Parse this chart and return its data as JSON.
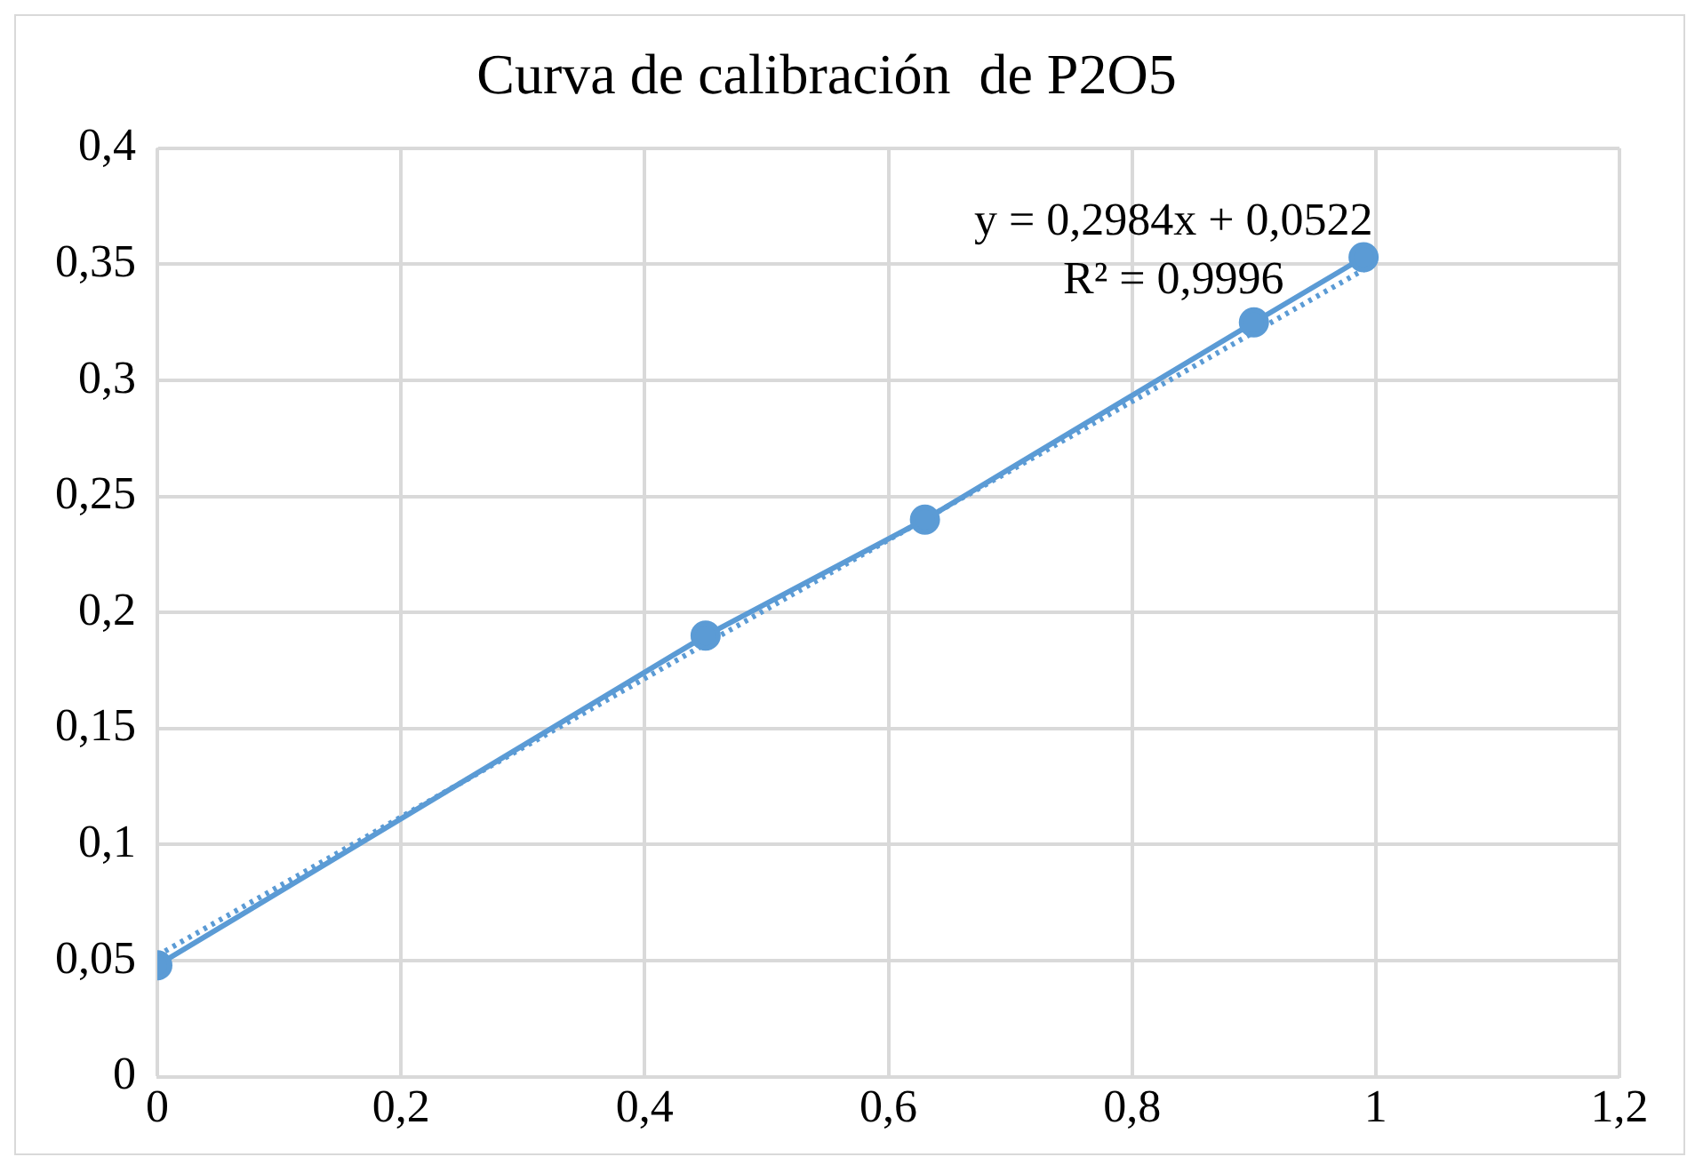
{
  "chart_data": {
    "type": "line",
    "title": "Curva de calibración  de P2O5",
    "series": [
      {
        "color": "#5b9bd5",
        "x": [
          0,
          0.45,
          0.63,
          0.9,
          0.99
        ],
        "values": [
          0.048,
          0.19,
          0.24,
          0.325,
          0.353
        ],
        "marker": "circle",
        "line_style": "solid"
      },
      {
        "color": "#5b9bd5",
        "x": [
          0,
          0.99
        ],
        "values": [
          0.0522,
          0.3476
        ],
        "marker": "none",
        "line_style": "dotted"
      }
    ],
    "xlim": [
      0,
      1.2
    ],
    "xticks": [
      0,
      {
        "value": 0.2,
        "label": "0,2"
      },
      {
        "value": 0.4,
        "label": "0,4"
      },
      {
        "value": 0.6,
        "label": "0,6"
      },
      {
        "value": 0.8,
        "label": "0,8"
      },
      1,
      {
        "value": 1.2,
        "label": "1,2"
      }
    ],
    "ylim": [
      0,
      0.4
    ],
    "yticks": [
      0,
      {
        "value": 0.05,
        "label": "0,05"
      },
      {
        "value": 0.1,
        "label": "0,1"
      },
      {
        "value": 0.15,
        "label": "0,15"
      },
      {
        "value": 0.2,
        "label": "0,2"
      },
      {
        "value": 0.25,
        "label": "0,25"
      },
      {
        "value": 0.3,
        "label": "0,3"
      },
      {
        "value": 0.35,
        "label": "0,35"
      },
      {
        "value": 0.4,
        "label": "0,4"
      }
    ],
    "grid": true,
    "legend": false,
    "annotations": [
      "y = 0,2984x + 0,0522",
      "R² = 0,9996"
    ]
  }
}
